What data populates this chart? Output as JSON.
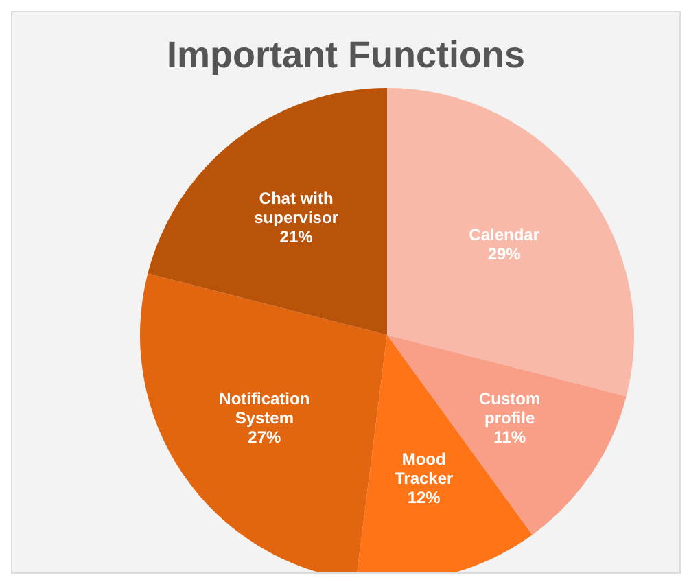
{
  "chart_data": {
    "type": "pie",
    "title": "Important Functions",
    "categories": [
      "Calendar",
      "Custom profile",
      "Mood Tracker",
      "Notification System",
      "Chat with supervisor"
    ],
    "values": [
      29,
      11,
      12,
      27,
      21
    ],
    "colors": [
      "#f9b9a9",
      "#f99f88",
      "#ff7417",
      "#e2650f",
      "#b95309"
    ],
    "value_labels": [
      "29%",
      "11%",
      "12%",
      "27%",
      "21%"
    ],
    "legend": false
  }
}
